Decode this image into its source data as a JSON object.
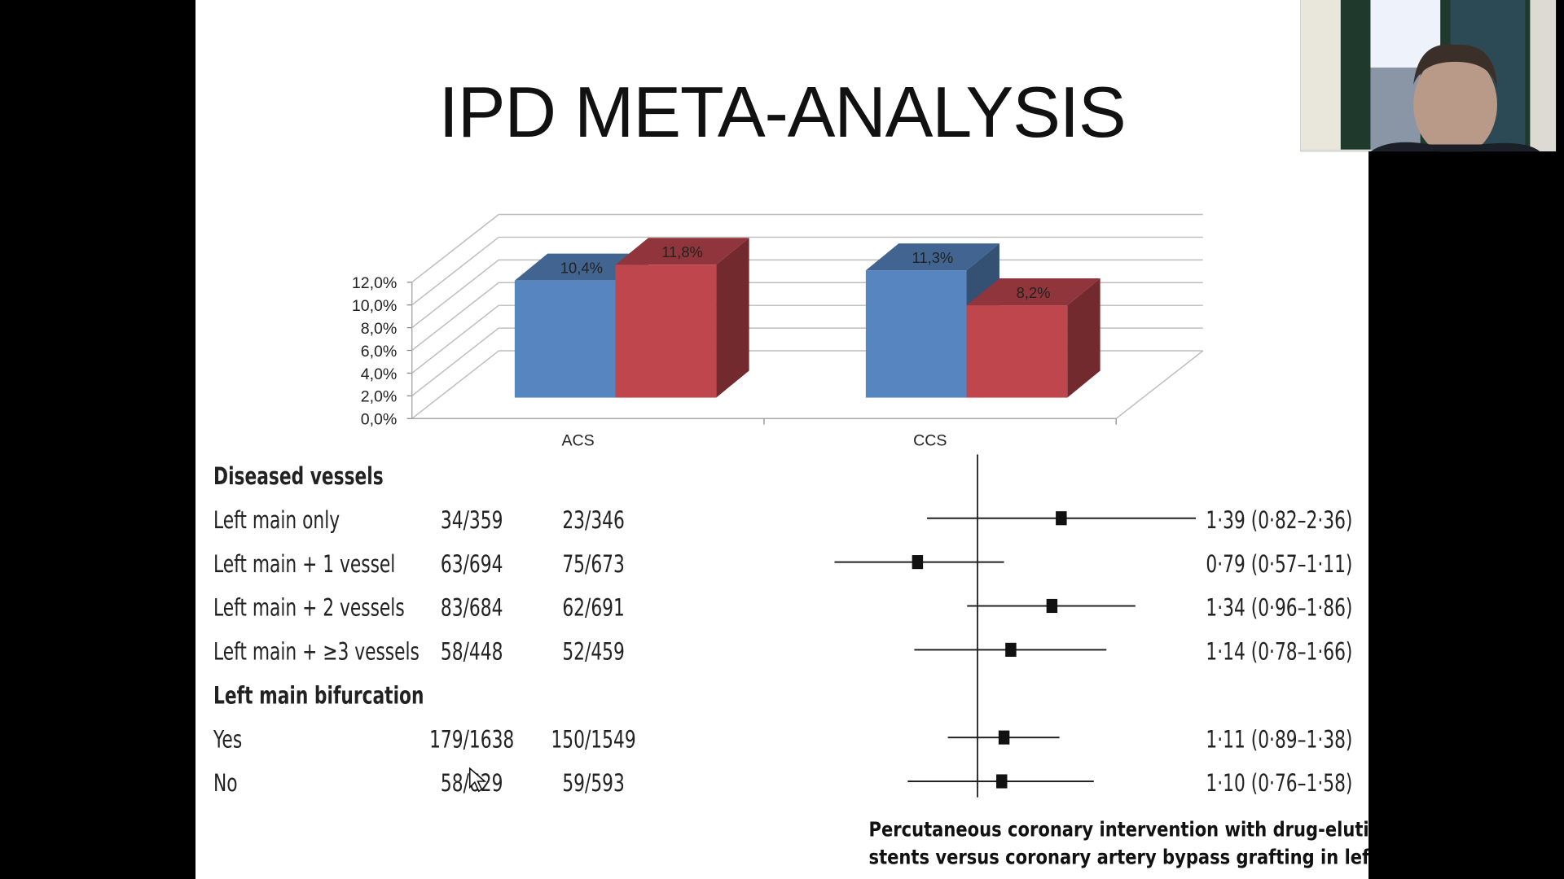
{
  "slide": {
    "title": "IPD META-ANALYSIS",
    "caption_lines": [
      "Percutaneous coronary intervention with drug-eluting",
      "stents versus coronary artery bypass grafting in left main"
    ]
  },
  "chart_data": {
    "type": "bar",
    "style": "3d-clustered-column",
    "categories": [
      "ACS",
      "CCS"
    ],
    "series": [
      {
        "values": [
          10.4,
          11.3
        ],
        "labels": [
          "10,4%",
          "11,3%"
        ],
        "color": "#5685c0"
      },
      {
        "values": [
          11.8,
          8.2
        ],
        "labels": [
          "11,8%",
          "8,2%"
        ],
        "color": "#c0464e"
      }
    ],
    "ylim": [
      0,
      12
    ],
    "y_tick_labels": [
      "0,0%",
      "2,0%",
      "4,0%",
      "6,0%",
      "8,0%",
      "10,0%",
      "12,0%"
    ],
    "grid": true,
    "legend": "none"
  },
  "forest": {
    "groups": [
      {
        "header": "Diseased vessels",
        "rows": [
          {
            "label": "Left main only",
            "a": "34/359",
            "b": "23/346",
            "hr": 1.39,
            "lo": 0.82,
            "hi": 2.36,
            "ci_text": "1·39 (0·82–2·36)"
          },
          {
            "label": "Left main + 1 vessel",
            "a": "63/694",
            "b": "75/673",
            "hr": 0.79,
            "lo": 0.57,
            "hi": 1.11,
            "ci_text": "0·79 (0·57–1·11)"
          },
          {
            "label": "Left main + 2 vessels",
            "a": "83/684",
            "b": "62/691",
            "hr": 1.34,
            "lo": 0.96,
            "hi": 1.86,
            "ci_text": "1·34 (0·96–1·86)"
          },
          {
            "label": "Left main + ≥3 vessels",
            "a": "58/448",
            "b": "52/459",
            "hr": 1.14,
            "lo": 0.78,
            "hi": 1.66,
            "ci_text": "1·14 (0·78–1·66)"
          }
        ]
      },
      {
        "header": "Left main bifurcation",
        "rows": [
          {
            "label": "Yes",
            "a": "179/1638",
            "b": "150/1549",
            "hr": 1.11,
            "lo": 0.89,
            "hi": 1.38,
            "ci_text": "1·11 (0·89–1·38)"
          },
          {
            "label": "No",
            "a": "58/629",
            "b": "59/593",
            "hr": 1.1,
            "lo": 0.76,
            "hi": 1.58,
            "ci_text": "1·10 (0·76–1·58)"
          }
        ]
      }
    ],
    "reference_value": 1,
    "scale": "log"
  },
  "webcam": {
    "icon": "presenter-video-feed"
  }
}
